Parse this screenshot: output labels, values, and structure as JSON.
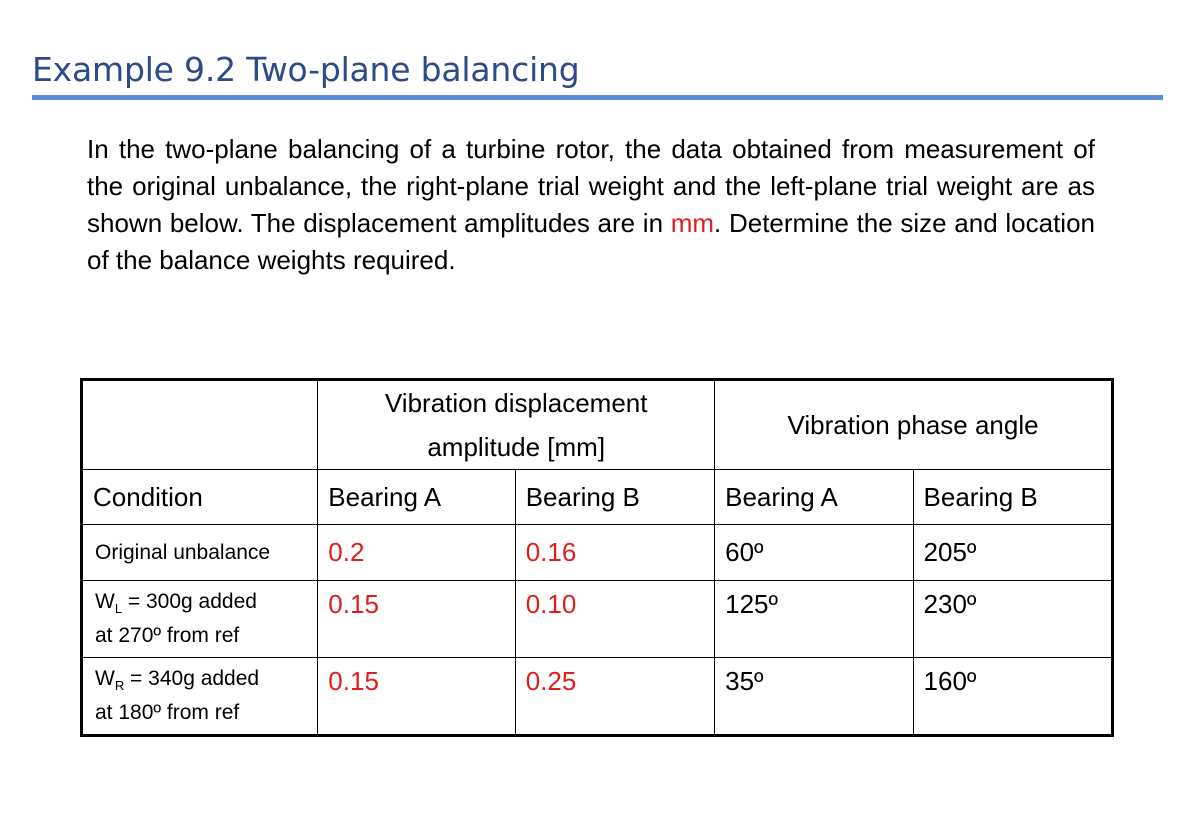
{
  "title": "Example 9.2 Two-plane balancing",
  "paragraph": {
    "before": "In the two-plane balancing of a turbine rotor, the data obtained from measurement of the original unbalance, the right-plane trial weight and the left-plane trial weight are as shown below. The displacement amplitudes are in ",
    "highlight": "mm",
    "after": ". Determine the size and location of the balance weights required."
  },
  "colors": {
    "title": "#2e4b87",
    "rule": "#5b8ed6",
    "highlight": "#e01e1e"
  },
  "table": {
    "group_headers": {
      "amplitude": "Vibration displacement amplitude [mm]",
      "phase": "Vibration phase angle"
    },
    "columns": [
      "Condition",
      "Bearing A",
      "Bearing B",
      "Bearing A",
      "Bearing B"
    ],
    "rows": [
      {
        "condition": "Original unbalance",
        "amp_a": "0.2",
        "amp_b": "0.16",
        "phase_a": "60º",
        "phase_b": "205º"
      },
      {
        "condition_w": "W",
        "condition_sub": "L",
        "condition_rest": " = 300g added",
        "condition_line2": "at 270º from ref",
        "amp_a": "0.15",
        "amp_b": "0.10",
        "phase_a": "125º",
        "phase_b": "230º"
      },
      {
        "condition_w": "W",
        "condition_sub": "R",
        "condition_rest": " = 340g added",
        "condition_line2": "at 180º from ref",
        "amp_a": "0.15",
        "amp_b": "0.25",
        "phase_a": "35º",
        "phase_b": "160º"
      }
    ]
  }
}
